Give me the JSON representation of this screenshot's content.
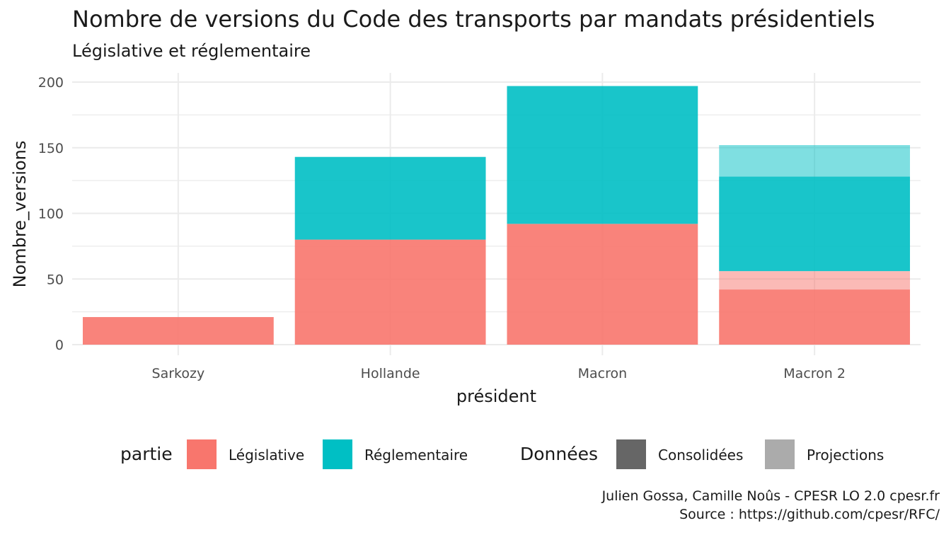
{
  "chart_data": {
    "type": "bar",
    "stacked": true,
    "title": "Nombre de versions du Code des transports par mandats présidentiels",
    "subtitle": "Législative et réglementaire",
    "xlabel": "président",
    "ylabel": "Nombre_versions",
    "ylim": [
      0,
      200
    ],
    "yticks": [
      0,
      50,
      100,
      150,
      200
    ],
    "categories": [
      "Sarkozy",
      "Hollande",
      "Macron",
      "Macron 2"
    ],
    "series": [
      {
        "name": "Législative",
        "donnees": "Consolidées",
        "color": "#F8766D",
        "values": [
          21,
          80,
          92,
          42
        ]
      },
      {
        "name": "Législative",
        "donnees": "Projections",
        "color": "#F8766D",
        "values": [
          0,
          0,
          0,
          14
        ]
      },
      {
        "name": "Réglementaire",
        "donnees": "Consolidées",
        "color": "#00BFC4",
        "values": [
          0,
          63,
          105,
          72
        ]
      },
      {
        "name": "Réglementaire",
        "donnees": "Projections",
        "color": "#00BFC4",
        "values": [
          0,
          0,
          0,
          24
        ]
      }
    ],
    "grid": true,
    "legend_position": "bottom",
    "legend": {
      "partie_title": "partie",
      "partie_items": [
        {
          "label": "Législative",
          "color": "#F8766D"
        },
        {
          "label": "Réglementaire",
          "color": "#00BFC4"
        }
      ],
      "donnees_title": "Données",
      "donnees_items": [
        {
          "label": "Consolidées",
          "color": "#666666"
        },
        {
          "label": "Projections",
          "color": "#ababab"
        }
      ]
    }
  },
  "caption": {
    "line1": "Julien Gossa, Camille Noûs - CPESR LO 2.0 cpesr.fr",
    "line2": "Source : https://github.com/cpesr/RFC/"
  }
}
